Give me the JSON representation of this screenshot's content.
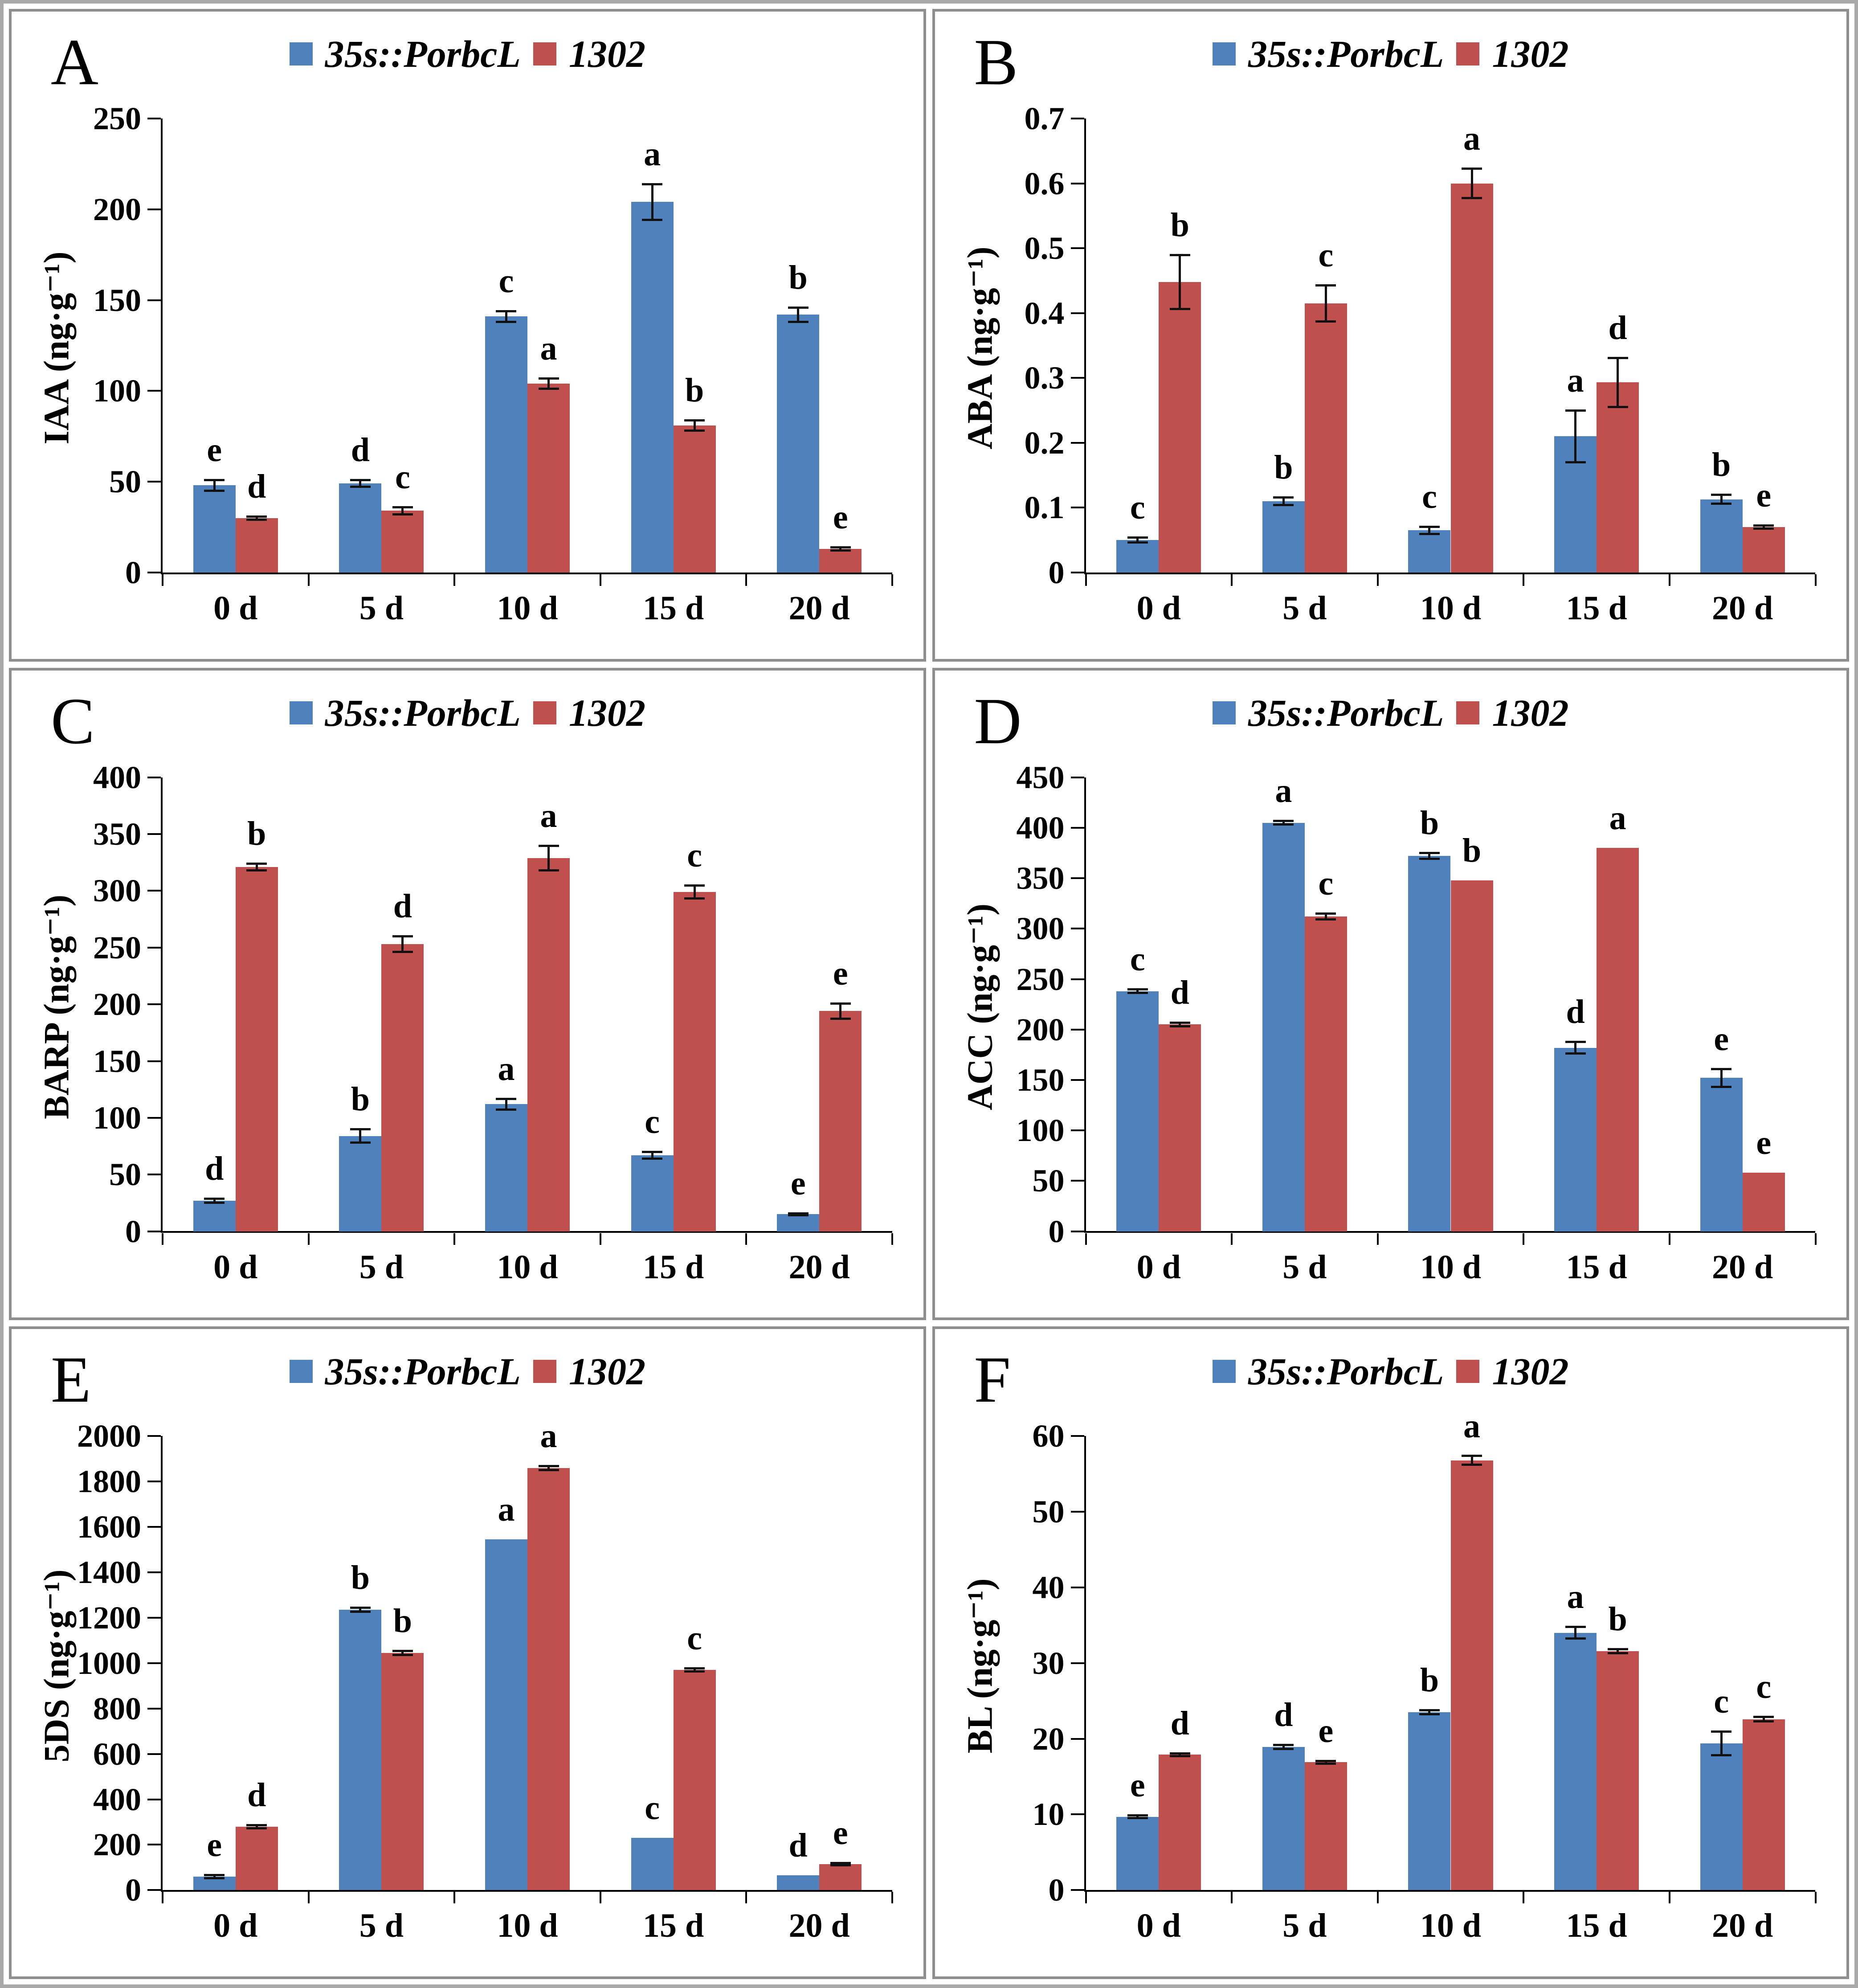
{
  "colors": {
    "bar_blue": "#4f81bd",
    "bar_red": "#c0504d",
    "error_bar": "#111111",
    "axis": "#000000",
    "panel_border": "#8f8f8f"
  },
  "chart_data": [
    {
      "type": "bar",
      "panel_label": "A",
      "ylabel": "IAA (ng·g⁻¹)",
      "xlabel": "",
      "ylim": [
        0,
        250
      ],
      "ytick_step": 50,
      "ytick_labels": [
        "0",
        "50",
        "100",
        "150",
        "200",
        "250"
      ],
      "categories": [
        "0 d",
        "5 d",
        "10 d",
        "15 d",
        "20 d"
      ],
      "grid": false,
      "legend_position": "top-center",
      "series": [
        {
          "name": "35s::PorbcL",
          "color": "#4f81bd",
          "values": [
            48,
            49,
            141,
            204,
            142
          ],
          "errors": [
            3,
            2,
            3,
            10,
            4
          ],
          "sig_letters": [
            "e",
            "d",
            "c",
            "a",
            "b"
          ]
        },
        {
          "name": "1302",
          "color": "#c0504d",
          "values": [
            30,
            34,
            104,
            81,
            13
          ],
          "errors": [
            1,
            2,
            3,
            3,
            1
          ],
          "sig_letters": [
            "d",
            "c",
            "a",
            "b",
            "e"
          ]
        }
      ]
    },
    {
      "type": "bar",
      "panel_label": "B",
      "ylabel": "ABA (ng·g⁻¹)",
      "xlabel": "",
      "ylim": [
        0,
        0.7
      ],
      "ytick_step": 0.1,
      "ytick_labels": [
        "0",
        "0.1",
        "0.2",
        "0.3",
        "0.4",
        "0.5",
        "0.6",
        "0.7"
      ],
      "categories": [
        "0 d",
        "5 d",
        "10 d",
        "15 d",
        "20 d"
      ],
      "grid": false,
      "legend_position": "top-center",
      "series": [
        {
          "name": "35s::PorbcL",
          "color": "#4f81bd",
          "values": [
            0.05,
            0.11,
            0.065,
            0.21,
            0.113
          ],
          "errors": [
            0.004,
            0.006,
            0.006,
            0.04,
            0.007
          ],
          "sig_letters": [
            "c",
            "b",
            "c",
            "a",
            "b"
          ]
        },
        {
          "name": "1302",
          "color": "#c0504d",
          "values": [
            0.448,
            0.415,
            0.6,
            0.293,
            0.07
          ],
          "errors": [
            0.042,
            0.028,
            0.023,
            0.038,
            0.003
          ],
          "sig_letters": [
            "b",
            "c",
            "a",
            "d",
            "e"
          ]
        }
      ]
    },
    {
      "type": "bar",
      "panel_label": "C",
      "ylabel": "BARP (ng·g⁻¹)",
      "xlabel": "",
      "ylim": [
        0,
        400
      ],
      "ytick_step": 50,
      "ytick_labels": [
        "0",
        "50",
        "100",
        "150",
        "200",
        "250",
        "300",
        "350",
        "400"
      ],
      "categories": [
        "0 d",
        "5 d",
        "10 d",
        "15 d",
        "20 d"
      ],
      "grid": false,
      "legend_position": "top-center",
      "series": [
        {
          "name": "35s::PorbcL",
          "color": "#4f81bd",
          "values": [
            27,
            84,
            112,
            67,
            15
          ],
          "errors": [
            2,
            6,
            5,
            3,
            1
          ],
          "sig_letters": [
            "d",
            "b",
            "a",
            "c",
            "e"
          ]
        },
        {
          "name": "1302",
          "color": "#c0504d",
          "values": [
            321,
            253,
            329,
            299,
            194
          ],
          "errors": [
            3,
            7,
            11,
            6,
            7
          ],
          "sig_letters": [
            "b",
            "d",
            "a",
            "c",
            "e"
          ]
        }
      ]
    },
    {
      "type": "bar",
      "panel_label": "D",
      "ylabel": "ACC (ng·g⁻¹)",
      "xlabel": "",
      "ylim": [
        0,
        450
      ],
      "ytick_step": 50,
      "ytick_labels": [
        "0",
        "50",
        "100",
        "150",
        "200",
        "250",
        "300",
        "350",
        "400",
        "450"
      ],
      "categories": [
        "0 d",
        "5 d",
        "10 d",
        "15 d",
        "20 d"
      ],
      "grid": false,
      "legend_position": "top-center",
      "series": [
        {
          "name": "35s::PorbcL",
          "color": "#4f81bd",
          "values": [
            238,
            405,
            372,
            182,
            152
          ],
          "errors": [
            2,
            2,
            3,
            6,
            9
          ],
          "sig_letters": [
            "c",
            "a",
            "b",
            "d",
            "e"
          ]
        },
        {
          "name": "1302",
          "color": "#c0504d",
          "values": [
            205,
            312,
            348,
            380,
            58
          ],
          "errors": [
            2,
            3,
            0,
            0,
            0
          ],
          "sig_letters": [
            "d",
            "c",
            "b",
            "a",
            "e"
          ]
        }
      ]
    },
    {
      "type": "bar",
      "panel_label": "E",
      "ylabel": "5DS (ng·g⁻¹)",
      "xlabel": "",
      "ylim": [
        0,
        2000
      ],
      "ytick_step": 200,
      "ytick_labels": [
        "0",
        "200",
        "400",
        "600",
        "800",
        "1000",
        "1200",
        "1400",
        "1600",
        "1800",
        "2000"
      ],
      "categories": [
        "0 d",
        "5 d",
        "10 d",
        "15 d",
        "20 d"
      ],
      "grid": false,
      "legend_position": "top-center",
      "series": [
        {
          "name": "35s::PorbcL",
          "color": "#4f81bd",
          "values": [
            60,
            1235,
            1545,
            230,
            65
          ],
          "errors": [
            8,
            10,
            0,
            0,
            0
          ],
          "sig_letters": [
            "e",
            "b",
            "a",
            "c",
            "d"
          ]
        },
        {
          "name": "1302",
          "color": "#c0504d",
          "values": [
            280,
            1045,
            1860,
            970,
            115
          ],
          "errors": [
            8,
            10,
            10,
            8,
            6
          ],
          "sig_letters": [
            "d",
            "b",
            "a",
            "c",
            "e"
          ]
        }
      ]
    },
    {
      "type": "bar",
      "panel_label": "F",
      "ylabel": "BL (ng·g⁻¹)",
      "xlabel": "",
      "ylim": [
        0,
        60
      ],
      "ytick_step": 10,
      "ytick_labels": [
        "0",
        "10",
        "20",
        "30",
        "40",
        "50",
        "60"
      ],
      "categories": [
        "0 d",
        "5 d",
        "10 d",
        "15 d",
        "20 d"
      ],
      "grid": false,
      "legend_position": "top-center",
      "series": [
        {
          "name": "35s::PorbcL",
          "color": "#4f81bd",
          "values": [
            9.7,
            18.9,
            23.5,
            34,
            19.4
          ],
          "errors": [
            0.2,
            0.3,
            0.3,
            0.8,
            1.6
          ],
          "sig_letters": [
            "e",
            "d",
            "b",
            "a",
            "c"
          ]
        },
        {
          "name": "1302",
          "color": "#c0504d",
          "values": [
            17.9,
            16.9,
            56.8,
            31.6,
            22.6
          ],
          "errors": [
            0.2,
            0.2,
            0.6,
            0.3,
            0.3
          ],
          "sig_letters": [
            "d",
            "e",
            "a",
            "b",
            "c"
          ]
        }
      ]
    }
  ]
}
